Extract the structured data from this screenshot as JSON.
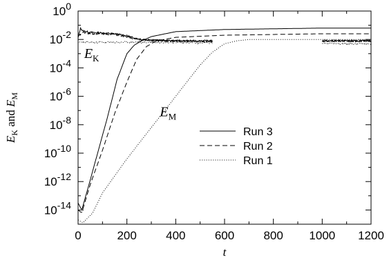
{
  "chart_data": {
    "type": "line",
    "title": "",
    "xlabel": "t",
    "ylabel": "E_K and E_M",
    "ylabel_parts": {
      "e1": "E",
      "s1": "K",
      "mid": " and ",
      "e2": "E",
      "s2": "M"
    },
    "xlim": [
      0,
      1200
    ],
    "ylim_log10": [
      -15,
      0
    ],
    "yscale": "log",
    "x_ticks": [
      0,
      200,
      400,
      600,
      800,
      1000,
      1200
    ],
    "x_tick_labels": [
      "0",
      "200",
      "400",
      "600",
      "800",
      "1000",
      "1200"
    ],
    "y_ticks_exp": [
      0,
      -2,
      -4,
      -6,
      -8,
      -10,
      -12,
      -14
    ],
    "y_tick_labels": [
      "10^0",
      "10^-2",
      "10^-4",
      "10^-6",
      "10^-8",
      "10^-10",
      "10^-12",
      "10^-14"
    ],
    "grid": false,
    "legend_position": "center-right",
    "annotations": [
      {
        "main": "E",
        "sub": "K",
        "x": 25,
        "y_log10": -3.3
      },
      {
        "main": "E",
        "sub": "M",
        "x": 335,
        "y_log10": -7.4
      }
    ],
    "series": [
      {
        "name": "Run 3",
        "dash": "solid",
        "kinetic": {
          "x": [
            0,
            10,
            20,
            50,
            100,
            150,
            200,
            230,
            260,
            300,
            400,
            550
          ],
          "y_log10": [
            -1.9,
            -1.2,
            -1.4,
            -1.5,
            -1.55,
            -1.6,
            -1.75,
            -1.9,
            -2.0,
            -2.05,
            -2.1,
            -2.1
          ],
          "x2": [
            1000,
            1200
          ],
          "y2_log10": [
            -2.1,
            -2.1
          ]
        },
        "magnetic": {
          "x": [
            0,
            15,
            40,
            80,
            120,
            160,
            200,
            230,
            260,
            300,
            400,
            600,
            800,
            1000,
            1200
          ],
          "y_log10": [
            -13.5,
            -14.0,
            -12.5,
            -10.0,
            -7.5,
            -4.8,
            -3.0,
            -2.4,
            -2.1,
            -1.8,
            -1.45,
            -1.3,
            -1.25,
            -1.2,
            -1.2
          ]
        }
      },
      {
        "name": "Run 2",
        "dash": "dashed",
        "kinetic": {
          "x": [
            0,
            20,
            50,
            100,
            150,
            200,
            230,
            260,
            300,
            400,
            550
          ],
          "y_log10": [
            -1.8,
            -1.5,
            -1.6,
            -1.6,
            -1.65,
            -1.8,
            -1.95,
            -2.0,
            -2.05,
            -2.1,
            -2.15
          ],
          "x2": [
            1000,
            1200
          ],
          "y2_log10": [
            -2.1,
            -2.1
          ]
        },
        "magnetic": {
          "x": [
            0,
            15,
            50,
            100,
            150,
            200,
            240,
            280,
            320,
            400,
            600,
            800,
            1000,
            1200
          ],
          "y_log10": [
            -14.0,
            -14.2,
            -12.2,
            -9.8,
            -7.2,
            -5.0,
            -3.4,
            -2.5,
            -2.1,
            -1.85,
            -1.7,
            -1.65,
            -1.6,
            -1.6
          ]
        }
      },
      {
        "name": "Run 1",
        "dash": "dotted",
        "kinetic": {
          "x": [
            0,
            50,
            100,
            200,
            300,
            400,
            550
          ],
          "y_log10": [
            -2.2,
            -2.2,
            -2.2,
            -2.2,
            -2.2,
            -2.2,
            -2.25
          ],
          "x2": [
            1000,
            1200
          ],
          "y2_log10": [
            -2.3,
            -2.3
          ]
        },
        "magnetic": {
          "x": [
            0,
            20,
            60,
            100,
            200,
            300,
            400,
            500,
            550,
            600,
            650,
            700,
            800,
            1000,
            1200
          ],
          "y_log10": [
            -14.7,
            -14.9,
            -14.2,
            -12.8,
            -10.4,
            -8.2,
            -6.0,
            -3.8,
            -2.9,
            -2.3,
            -2.1,
            -2.0,
            -2.0,
            -2.0,
            -2.0
          ]
        }
      }
    ]
  }
}
